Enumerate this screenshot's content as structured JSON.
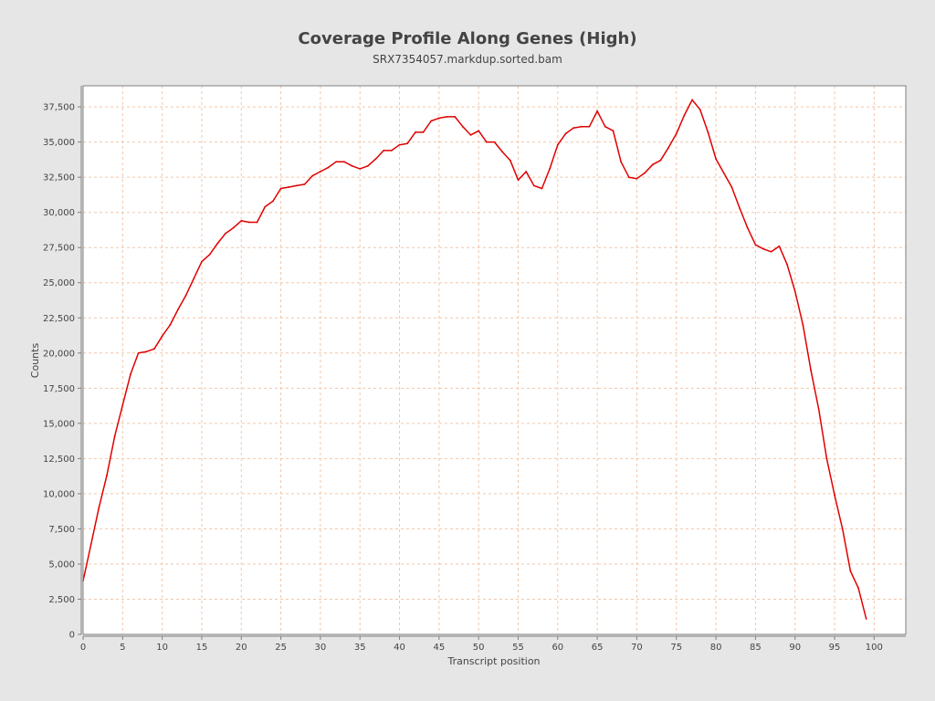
{
  "colors": {
    "background": "#e6e6e6",
    "plot_background": "#ffffff",
    "grid": "#f2c6a8",
    "series": "#e00000",
    "text": "#444444"
  },
  "chart_data": {
    "type": "line",
    "title": "Coverage Profile Along Genes (High)",
    "subtitle": "SRX7354057.markdup.sorted.bam",
    "xlabel": "Transcript position",
    "ylabel": "Counts",
    "xlim": [
      0,
      104
    ],
    "ylim": [
      0,
      39000
    ],
    "grid": true,
    "x_ticks": [
      0,
      5,
      10,
      15,
      20,
      25,
      30,
      35,
      40,
      45,
      50,
      55,
      60,
      65,
      70,
      75,
      80,
      85,
      90,
      95,
      100
    ],
    "x_tick_labels": [
      "0",
      "5",
      "10",
      "15",
      "20",
      "25",
      "30",
      "35",
      "40",
      "45",
      "50",
      "55",
      "60",
      "65",
      "70",
      "75",
      "80",
      "85",
      "90",
      "95",
      "100"
    ],
    "y_ticks": [
      0,
      2500,
      5000,
      7500,
      10000,
      12500,
      15000,
      17500,
      20000,
      22500,
      25000,
      27500,
      30000,
      32500,
      35000,
      37500
    ],
    "y_tick_labels": [
      "0",
      "2,500",
      "5,000",
      "7,500",
      "10,000",
      "12,500",
      "15,000",
      "17,500",
      "20,000",
      "22,500",
      "25,000",
      "27,500",
      "30,000",
      "32,500",
      "35,000",
      "37,500"
    ],
    "series": [
      {
        "x": [
          0,
          1,
          2,
          3,
          4,
          5,
          6,
          7,
          8,
          9,
          10,
          11,
          12,
          13,
          14,
          15,
          16,
          17,
          18,
          19,
          20,
          21,
          22,
          23,
          24,
          25,
          26,
          27,
          28,
          29,
          30,
          31,
          32,
          33,
          34,
          35,
          36,
          37,
          38,
          39,
          40,
          41,
          42,
          43,
          44,
          45,
          46,
          47,
          48,
          49,
          50,
          51,
          52,
          53,
          54,
          55,
          56,
          57,
          58,
          59,
          60,
          61,
          62,
          63,
          64,
          65,
          66,
          67,
          68,
          69,
          70,
          71,
          72,
          73,
          74,
          75,
          76,
          77,
          78,
          79,
          80,
          81,
          82,
          83,
          84,
          85,
          86,
          87,
          88,
          89,
          90,
          91,
          92,
          93,
          94,
          95,
          96,
          97,
          98,
          99
        ],
        "values": [
          3800,
          6400,
          9000,
          11300,
          14100,
          16300,
          18500,
          20000,
          20100,
          20300,
          21200,
          22000,
          23100,
          24100,
          25300,
          26500,
          27000,
          27800,
          28500,
          28900,
          29400,
          29300,
          29300,
          30400,
          30800,
          31700,
          31800,
          31900,
          32000,
          32600,
          32900,
          33200,
          33600,
          33600,
          33300,
          33100,
          33300,
          33800,
          34400,
          34400,
          34800,
          34900,
          35700,
          35700,
          36500,
          36700,
          36800,
          36800,
          36100,
          35500,
          35800,
          35000,
          35000,
          34300,
          33700,
          32300,
          32900,
          31900,
          31700,
          33100,
          34800,
          35600,
          36000,
          36100,
          36100,
          37200,
          36100,
          35800,
          33600,
          32500,
          32400,
          32800,
          33400,
          33700,
          34600,
          35600,
          36900,
          38000,
          37300,
          35700,
          33800,
          32800,
          31800,
          30300,
          28900,
          27700,
          27400,
          27200,
          27600,
          26300,
          24400,
          22000,
          18800,
          16000,
          12500,
          9900,
          7500,
          4500,
          3300,
          1100
        ]
      }
    ]
  }
}
